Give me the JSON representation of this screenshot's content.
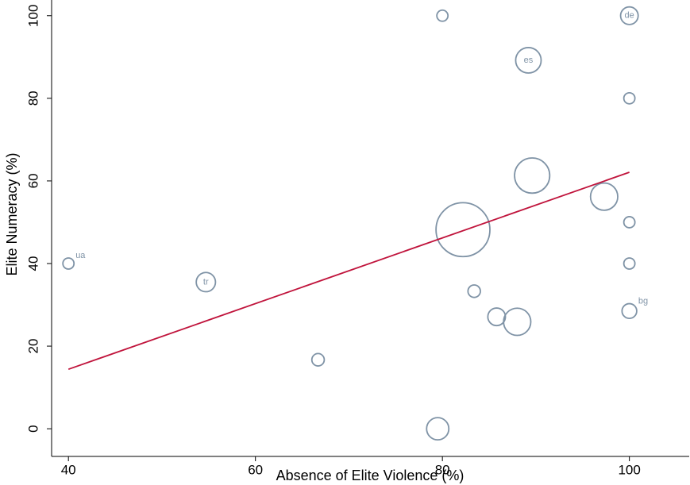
{
  "chart_data": {
    "type": "scatter",
    "x_label": "Absence of Elite Violence (%)",
    "y_label": "Elite Numeracy (%)",
    "x": [
      80,
      100,
      89.2,
      100,
      89.6,
      97.3,
      82.2,
      100,
      40,
      100,
      54.7,
      83.4,
      100,
      85.8,
      88.0,
      66.7,
      79.5
    ],
    "y": [
      100,
      100,
      89.2,
      80,
      61.3,
      56.2,
      48.2,
      50,
      40,
      40,
      35.5,
      33.3,
      28.5,
      27.1,
      25.9,
      16.7,
      0
    ],
    "sizes": [
      4,
      10,
      21,
      4,
      40,
      24,
      94,
      4,
      4,
      4,
      12,
      5,
      7,
      10,
      24,
      5,
      16
    ],
    "labels": [
      null,
      "de",
      "es",
      null,
      null,
      null,
      null,
      null,
      "ua",
      null,
      "tr",
      null,
      "bg",
      null,
      null,
      null,
      null
    ],
    "color": "#7f93a6",
    "fit_line": {
      "x": [
        40,
        100
      ],
      "y": [
        14.4,
        62.1
      ],
      "color": "#c0143c"
    },
    "xlim": [
      38.2,
      106.4
    ],
    "ylim": [
      -6.7,
      103.8
    ],
    "xticks": [
      40,
      60,
      80,
      100
    ],
    "yticks": [
      0,
      20,
      40,
      60,
      80,
      100
    ]
  }
}
